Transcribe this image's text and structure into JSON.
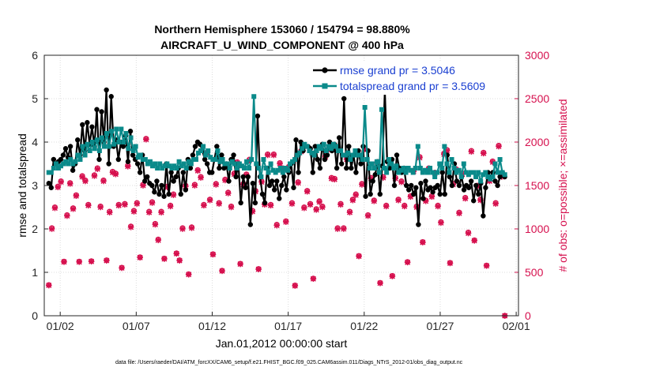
{
  "chart_data": {
    "type": "line",
    "title": "Northern Hemisphere 153060 / 154794 = 98.880%",
    "subtitle": "AIRCRAFT_U_WIND_COMPONENT @ 400 hPa",
    "xlabel": "Jan.01,2012 00:00:00 start",
    "ylabel": "rmse and totalspread",
    "y2label": "# of obs: o=possible; ×=assimilated",
    "footnote": "data file: /Users/raeder/DAI/ATM_forcXX/CAM6_setup/f.e21.FHIST_BGC.f09_025.CAM6assim.011/Diags_NTrS_2012-01/obs_diag_output.nc",
    "xlim": [
      0.7,
      31.9
    ],
    "ylim": [
      0,
      6
    ],
    "y2lim": [
      0,
      3000
    ],
    "xticks": [
      1.75,
      6.75,
      11.75,
      16.75,
      21.75,
      26.75,
      31.75
    ],
    "xtick_labels": [
      "01/02",
      "01/07",
      "01/12",
      "01/17",
      "01/22",
      "01/27",
      "02/01"
    ],
    "yticks": [
      0,
      1,
      2,
      3,
      4,
      5,
      6
    ],
    "ytick_labels": [
      "0",
      "1",
      "2",
      "3",
      "4",
      "5",
      "6"
    ],
    "y2ticks": [
      0,
      500,
      1000,
      1500,
      2000,
      2500,
      3000
    ],
    "y2tick_labels": [
      "0",
      "500",
      "1000",
      "1500",
      "2000",
      "2500",
      "3000"
    ],
    "grid": true,
    "legend_position": "top-right",
    "colors": {
      "rmse": "#000000",
      "spread": "#0a8a8a",
      "obs": "#d6104e",
      "legend_text": "#1a3fd1",
      "axis_right": "#d6104e"
    },
    "series": [
      {
        "name": "rmse grand pr = 3.5046",
        "key": "rmse",
        "axis": "left",
        "values": [
          3.05,
          2.95,
          3.6,
          3.5,
          3.55,
          3.6,
          3.7,
          3.85,
          3.65,
          3.9,
          3.35,
          3.5,
          4.05,
          3.7,
          4.4,
          3.8,
          4.45,
          3.95,
          4.35,
          3.9,
          4.75,
          3.6,
          4.7,
          4.0,
          5.2,
          3.5,
          5.05,
          3.9,
          4.05,
          3.6,
          4.0,
          3.9,
          4.15,
          3.55,
          4.25,
          3.7,
          3.6,
          3.5,
          3.3,
          3.7,
          3.1,
          3.2,
          3.05,
          3.0,
          2.85,
          3.1,
          2.8,
          3.0,
          2.75,
          3.5,
          2.8,
          3.3,
          3.1,
          3.2,
          3.4,
          2.8,
          3.3,
          2.9,
          3.6,
          3.4,
          3.7,
          3.9,
          4.0,
          3.95,
          3.8,
          3.6,
          3.5,
          3.3,
          3.3,
          3.6,
          3.9,
          3.4,
          3.7,
          3.4,
          3.5,
          3.1,
          3.6,
          3.7,
          3.2,
          3.5,
          2.6,
          3.2,
          2.95,
          3.2,
          2.1,
          3.05,
          2.6,
          4.6,
          3.2,
          2.8,
          2.6,
          3.4,
          3.0,
          3.1,
          2.9,
          3.1,
          2.7,
          3.0,
          3.2,
          2.9,
          3.3,
          3.5,
          2.95,
          4.05,
          3.3,
          4.0,
          3.8,
          3.9,
          3.9,
          3.85,
          3.3,
          3.9,
          3.6,
          3.4,
          3.95,
          3.6,
          3.7,
          4.0,
          3.8,
          3.95,
          3.4,
          4.1,
          3.5,
          5.0,
          3.4,
          3.9,
          3.4,
          3.7,
          3.3,
          3.8,
          3.5,
          3.9,
          2.75,
          3.8,
          2.8,
          3.1,
          3.25,
          3.55,
          2.8,
          3.45,
          5.2,
          3.55,
          3.4,
          3.6,
          3.0,
          3.7,
          3.4,
          3.3,
          3.4,
          3.0,
          2.9,
          3.0,
          2.8,
          2.95,
          2.1,
          3.05,
          2.7,
          3.1,
          2.9,
          2.95,
          2.85,
          2.95,
          3.0,
          2.8,
          3.3,
          2.8,
          3.7,
          3.2,
          3.0,
          3.5,
          3.1,
          3.0,
          3.2,
          2.9,
          3.0,
          2.95,
          3.1,
          2.65,
          3.0,
          2.8,
          3.05,
          2.3,
          2.95,
          3.3,
          3.2,
          3.3,
          3.1,
          3.0,
          3.2,
          3.3,
          3.2
        ]
      },
      {
        "name": "totalspread grand pr = 3.5609",
        "key": "spread",
        "axis": "left",
        "values": [
          3.3,
          3.3,
          3.4,
          3.5,
          3.4,
          3.45,
          3.5,
          3.55,
          3.5,
          3.6,
          3.5,
          3.55,
          3.7,
          3.6,
          3.9,
          3.7,
          3.95,
          3.8,
          4.0,
          3.85,
          4.05,
          3.8,
          4.1,
          3.9,
          4.2,
          3.9,
          4.25,
          3.95,
          4.3,
          4.0,
          4.3,
          4.0,
          4.2,
          3.85,
          4.1,
          3.8,
          3.9,
          3.65,
          3.7,
          3.6,
          3.6,
          3.5,
          3.55,
          3.45,
          3.5,
          3.4,
          3.5,
          3.4,
          3.45,
          3.5,
          3.45,
          3.4,
          3.45,
          3.4,
          3.55,
          3.45,
          3.5,
          3.4,
          3.55,
          3.5,
          3.6,
          3.6,
          3.75,
          3.8,
          3.9,
          3.7,
          3.8,
          3.65,
          3.6,
          3.6,
          3.8,
          3.55,
          3.6,
          3.5,
          3.5,
          3.4,
          3.55,
          3.5,
          3.4,
          3.5,
          3.45,
          3.4,
          3.55,
          3.4,
          3.6,
          5.05,
          3.5,
          3.4,
          3.2,
          3.6,
          3.4,
          3.3,
          3.5,
          3.35,
          3.3,
          3.35,
          3.4,
          3.3,
          3.4,
          3.35,
          3.5,
          3.55,
          3.6,
          3.7,
          3.75,
          3.85,
          3.95,
          3.9,
          3.8,
          3.75,
          3.7,
          3.8,
          3.9,
          3.85,
          3.95,
          3.8,
          3.9,
          3.85,
          3.95,
          3.9,
          3.8,
          3.8,
          3.7,
          3.7,
          3.75,
          3.6,
          3.7,
          3.8,
          3.7,
          3.7,
          3.6,
          4.8,
          3.6,
          3.4,
          3.5,
          3.4,
          3.55,
          3.3,
          4.75,
          3.4,
          3.3,
          3.6,
          3.5,
          3.4,
          3.45,
          3.3,
          3.35,
          3.4,
          3.3,
          3.4,
          3.35,
          3.3,
          3.4,
          3.9,
          3.4,
          3.3,
          3.35,
          3.3,
          3.4,
          3.3,
          3.2,
          3.3,
          3.5,
          3.4,
          3.9,
          3.5,
          3.3,
          3.6,
          3.4,
          3.3,
          3.35,
          3.2,
          3.5,
          3.3,
          3.25,
          3.3,
          3.3,
          3.2,
          3.3,
          3.1,
          3.25,
          3.3,
          3.2,
          3.15,
          3.2,
          3.5,
          3.3,
          3.6,
          3.3,
          3.25
        ]
      },
      {
        "name": "obs possible",
        "key": "possible",
        "axis": "right",
        "marker": "o",
        "values": [
          355,
          1010,
          1250,
          1490,
          1550,
          625,
          1160,
          1530,
          1240,
          1390,
          625,
          1610,
          1560,
          1280,
          630,
          1620,
          1700,
          1260,
          1560,
          640,
          1200,
          1660,
          1640,
          1280,
          555,
          1290,
          1730,
          1030,
          1210,
          1300,
          675,
          1510,
          2040,
          1200,
          1310,
          1060,
          880,
          1200,
          660,
          1490,
          1270,
          1400,
          720,
          640,
          1010,
          1500,
          480,
          1020,
          1510,
          1680,
          1600,
          1280,
          1880,
          1340,
          710,
          1520,
          1300,
          520,
          1570,
          1420,
          1260,
          1640,
          1770,
          600,
          1520,
          1630,
          1800,
          1210,
          1440,
          540,
          1550,
          1290,
          1860,
          1280,
          1860,
          1050,
          1760,
          1700,
          1090,
          1720,
          1300,
          350,
          1540,
          1900,
          1250,
          1440,
          1290,
          430,
          1230,
          1320,
          1260,
          1840,
          1920,
          1590,
          1580,
          1010,
          1290,
          1010,
          1810,
          1200,
          1340,
          1400,
          690,
          1520,
          1930,
          1160,
          1590,
          1330,
          1770,
          380,
          1600,
          1270,
          1780,
          460,
          1590,
          1340,
          1550,
          1270,
          620,
          1380,
          1670,
          1260,
          1830,
          850,
          1330,
          1700,
          1380,
          1650,
          1270,
          1080,
          1870,
          1910,
          610,
          1520,
          1690,
          1190,
          1640,
          1360,
          960,
          1900,
          870,
          1500,
          1340,
          1880,
          580,
          1560,
          1780,
          1300,
          1960,
          1610,
          0
        ]
      },
      {
        "name": "obs assimilated",
        "key": "assimilated",
        "axis": "right",
        "marker": "x",
        "values": [
          350,
          1000,
          1240,
          1480,
          1540,
          620,
          1150,
          1520,
          1230,
          1380,
          620,
          1600,
          1550,
          1270,
          625,
          1610,
          1690,
          1250,
          1550,
          635,
          1190,
          1650,
          1630,
          1270,
          550,
          1280,
          1720,
          1020,
          1200,
          1290,
          670,
          1500,
          2030,
          1190,
          1300,
          1050,
          870,
          1190,
          655,
          1480,
          1260,
          1390,
          715,
          635,
          1000,
          1490,
          475,
          1010,
          1500,
          1670,
          1590,
          1270,
          1870,
          1330,
          705,
          1510,
          1290,
          515,
          1560,
          1410,
          1250,
          1630,
          1760,
          595,
          1510,
          1620,
          1790,
          1200,
          1430,
          535,
          1540,
          1280,
          1850,
          1270,
          1850,
          1040,
          1750,
          1690,
          1080,
          1710,
          1290,
          345,
          1530,
          1890,
          1240,
          1430,
          1280,
          425,
          1220,
          1310,
          1250,
          1830,
          1910,
          1580,
          1570,
          1000,
          1280,
          1000,
          1800,
          1190,
          1330,
          1390,
          685,
          1510,
          1920,
          1150,
          1580,
          1320,
          1760,
          375,
          1590,
          1260,
          1770,
          455,
          1580,
          1330,
          1540,
          1260,
          615,
          1370,
          1660,
          1250,
          1820,
          845,
          1320,
          1690,
          1370,
          1640,
          1260,
          1070,
          1860,
          1900,
          605,
          1510,
          1680,
          1180,
          1630,
          1350,
          950,
          1890,
          865,
          1490,
          1330,
          1870,
          575,
          1550,
          1770,
          1290,
          1950,
          1600,
          0
        ]
      }
    ]
  }
}
